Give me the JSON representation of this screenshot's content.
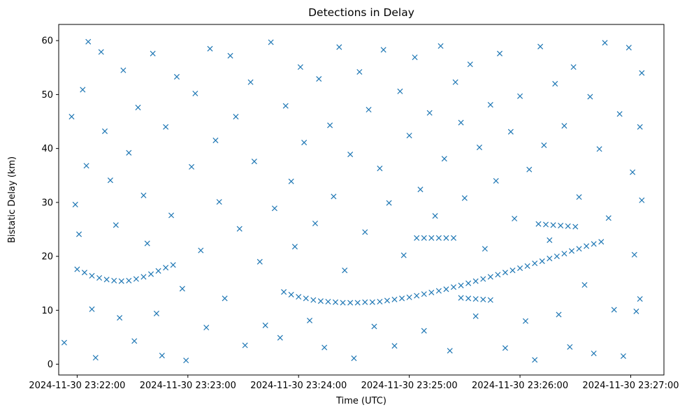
{
  "chart_data": {
    "type": "scatter",
    "title": "Detections in Delay",
    "xlabel": "Time (UTC)",
    "ylabel": "Bistatic Delay (km)",
    "x_unit": "time",
    "x_tick_labels": [
      "2024-11-30 23:22:00",
      "2024-11-30 23:23:00",
      "2024-11-30 23:24:00",
      "2024-11-30 23:25:00",
      "2024-11-30 23:26:00",
      "2024-11-30 23:27:00"
    ],
    "x_ticks": [
      "23:22:00",
      "23:23:00",
      "23:24:00",
      "23:25:00",
      "23:26:00",
      "23:27:00"
    ],
    "xlim": [
      "23:21:50",
      "23:27:18"
    ],
    "y_ticks": [
      0,
      10,
      20,
      30,
      40,
      50,
      60
    ],
    "ylim": [
      -2,
      63
    ],
    "marker": "x",
    "color": "#1f77b4",
    "grid": false,
    "series": [
      {
        "values": [
          [
            "23:22:00",
            17.6
          ],
          [
            "23:22:04",
            17.0
          ],
          [
            "23:22:08",
            16.4
          ],
          [
            "23:22:12",
            16.0
          ],
          [
            "23:22:16",
            15.7
          ],
          [
            "23:22:20",
            15.5
          ],
          [
            "23:22:24",
            15.4
          ],
          [
            "23:22:28",
            15.5
          ],
          [
            "23:22:32",
            15.8
          ],
          [
            "23:22:36",
            16.2
          ],
          [
            "23:22:40",
            16.7
          ],
          [
            "23:22:44",
            17.3
          ],
          [
            "23:22:48",
            17.9
          ],
          [
            "23:22:52",
            18.4
          ],
          [
            "23:23:52",
            13.4
          ],
          [
            "23:23:56",
            12.9
          ],
          [
            "23:24:00",
            12.5
          ],
          [
            "23:24:04",
            12.2
          ],
          [
            "23:24:08",
            11.9
          ],
          [
            "23:24:12",
            11.7
          ],
          [
            "23:24:16",
            11.6
          ],
          [
            "23:24:20",
            11.5
          ],
          [
            "23:24:24",
            11.4
          ],
          [
            "23:24:28",
            11.4
          ],
          [
            "23:24:32",
            11.4
          ],
          [
            "23:24:36",
            11.5
          ],
          [
            "23:24:40",
            11.5
          ],
          [
            "23:24:44",
            11.6
          ],
          [
            "23:24:48",
            11.8
          ],
          [
            "23:24:52",
            12.0
          ],
          [
            "23:24:56",
            12.2
          ],
          [
            "23:25:00",
            12.4
          ],
          [
            "23:25:04",
            12.7
          ],
          [
            "23:25:08",
            13.0
          ],
          [
            "23:25:12",
            13.3
          ],
          [
            "23:25:16",
            13.6
          ],
          [
            "23:25:20",
            13.9
          ],
          [
            "23:25:24",
            14.3
          ],
          [
            "23:25:28",
            14.6
          ],
          [
            "23:25:32",
            15.0
          ],
          [
            "23:25:36",
            15.4
          ],
          [
            "23:25:40",
            15.8
          ],
          [
            "23:25:44",
            16.2
          ],
          [
            "23:25:48",
            16.6
          ],
          [
            "23:25:52",
            17.0
          ],
          [
            "23:25:56",
            17.4
          ],
          [
            "23:26:00",
            17.8
          ],
          [
            "23:26:04",
            18.2
          ],
          [
            "23:26:08",
            18.7
          ],
          [
            "23:26:12",
            19.1
          ],
          [
            "23:26:16",
            19.6
          ],
          [
            "23:26:20",
            20.0
          ],
          [
            "23:26:24",
            20.5
          ],
          [
            "23:26:28",
            21.0
          ],
          [
            "23:26:32",
            21.4
          ],
          [
            "23:26:36",
            21.9
          ],
          [
            "23:26:40",
            22.3
          ],
          [
            "23:26:44",
            22.7
          ],
          [
            "23:25:04",
            23.4
          ],
          [
            "23:25:08",
            23.4
          ],
          [
            "23:25:12",
            23.4
          ],
          [
            "23:25:16",
            23.4
          ],
          [
            "23:25:20",
            23.4
          ],
          [
            "23:25:24",
            23.4
          ],
          [
            "23:25:28",
            12.3
          ],
          [
            "23:25:32",
            12.2
          ],
          [
            "23:25:36",
            12.1
          ],
          [
            "23:25:40",
            12.0
          ],
          [
            "23:25:44",
            11.9
          ],
          [
            "23:26:10",
            26.0
          ],
          [
            "23:26:14",
            25.9
          ],
          [
            "23:26:18",
            25.8
          ],
          [
            "23:26:22",
            25.7
          ],
          [
            "23:26:26",
            25.6
          ],
          [
            "23:26:30",
            25.5
          ],
          [
            "23:21:53",
            4.0
          ],
          [
            "23:21:57",
            45.9
          ],
          [
            "23:21:59",
            29.6
          ],
          [
            "23:22:01",
            24.1
          ],
          [
            "23:22:03",
            50.9
          ],
          [
            "23:22:05",
            36.8
          ],
          [
            "23:22:06",
            59.8
          ],
          [
            "23:22:08",
            10.2
          ],
          [
            "23:22:10",
            1.2
          ],
          [
            "23:22:13",
            57.9
          ],
          [
            "23:22:15",
            43.2
          ],
          [
            "23:22:18",
            34.1
          ],
          [
            "23:22:21",
            25.8
          ],
          [
            "23:22:23",
            8.6
          ],
          [
            "23:22:25",
            54.5
          ],
          [
            "23:22:28",
            39.2
          ],
          [
            "23:22:31",
            4.3
          ],
          [
            "23:22:33",
            47.6
          ],
          [
            "23:22:36",
            31.3
          ],
          [
            "23:22:38",
            22.4
          ],
          [
            "23:22:41",
            57.6
          ],
          [
            "23:22:43",
            9.4
          ],
          [
            "23:22:46",
            1.6
          ],
          [
            "23:22:48",
            44.0
          ],
          [
            "23:22:51",
            27.6
          ],
          [
            "23:22:54",
            53.3
          ],
          [
            "23:22:57",
            14.0
          ],
          [
            "23:22:59",
            0.7
          ],
          [
            "23:23:02",
            36.6
          ],
          [
            "23:23:04",
            50.2
          ],
          [
            "23:23:07",
            21.1
          ],
          [
            "23:23:10",
            6.8
          ],
          [
            "23:23:12",
            58.5
          ],
          [
            "23:23:15",
            41.5
          ],
          [
            "23:23:17",
            30.1
          ],
          [
            "23:23:20",
            12.2
          ],
          [
            "23:23:23",
            57.2
          ],
          [
            "23:23:26",
            45.9
          ],
          [
            "23:23:28",
            25.1
          ],
          [
            "23:23:31",
            3.5
          ],
          [
            "23:23:34",
            52.3
          ],
          [
            "23:23:36",
            37.6
          ],
          [
            "23:23:39",
            19.0
          ],
          [
            "23:23:42",
            7.2
          ],
          [
            "23:23:45",
            59.7
          ],
          [
            "23:23:47",
            28.9
          ],
          [
            "23:23:50",
            4.9
          ],
          [
            "23:23:53",
            47.9
          ],
          [
            "23:23:56",
            33.9
          ],
          [
            "23:23:58",
            21.8
          ],
          [
            "23:24:01",
            55.1
          ],
          [
            "23:24:03",
            41.1
          ],
          [
            "23:24:06",
            8.1
          ],
          [
            "23:24:09",
            26.1
          ],
          [
            "23:24:11",
            52.9
          ],
          [
            "23:24:14",
            3.1
          ],
          [
            "23:24:17",
            44.3
          ],
          [
            "23:24:19",
            31.1
          ],
          [
            "23:24:22",
            58.8
          ],
          [
            "23:24:25",
            17.4
          ],
          [
            "23:24:28",
            38.9
          ],
          [
            "23:24:30",
            1.1
          ],
          [
            "23:24:33",
            54.2
          ],
          [
            "23:24:36",
            24.5
          ],
          [
            "23:24:38",
            47.2
          ],
          [
            "23:24:41",
            7.0
          ],
          [
            "23:24:44",
            36.3
          ],
          [
            "23:24:46",
            58.3
          ],
          [
            "23:24:49",
            29.9
          ],
          [
            "23:24:52",
            3.4
          ],
          [
            "23:24:55",
            50.6
          ],
          [
            "23:24:57",
            20.2
          ],
          [
            "23:25:00",
            42.4
          ],
          [
            "23:25:03",
            56.9
          ],
          [
            "23:25:06",
            32.4
          ],
          [
            "23:25:08",
            6.2
          ],
          [
            "23:25:11",
            46.6
          ],
          [
            "23:25:14",
            27.5
          ],
          [
            "23:25:17",
            59.0
          ],
          [
            "23:25:19",
            38.1
          ],
          [
            "23:25:22",
            2.5
          ],
          [
            "23:25:25",
            52.3
          ],
          [
            "23:25:28",
            44.8
          ],
          [
            "23:25:30",
            30.8
          ],
          [
            "23:25:33",
            55.6
          ],
          [
            "23:25:36",
            8.9
          ],
          [
            "23:25:38",
            40.2
          ],
          [
            "23:25:41",
            21.4
          ],
          [
            "23:25:44",
            48.1
          ],
          [
            "23:25:47",
            34.0
          ],
          [
            "23:25:49",
            57.6
          ],
          [
            "23:25:52",
            3.0
          ],
          [
            "23:25:55",
            43.1
          ],
          [
            "23:25:57",
            27.0
          ],
          [
            "23:26:00",
            49.7
          ],
          [
            "23:26:03",
            8.0
          ],
          [
            "23:26:05",
            36.1
          ],
          [
            "23:26:08",
            0.8
          ],
          [
            "23:26:11",
            58.9
          ],
          [
            "23:26:13",
            40.6
          ],
          [
            "23:26:16",
            23.0
          ],
          [
            "23:26:19",
            52.0
          ],
          [
            "23:26:21",
            9.2
          ],
          [
            "23:26:24",
            44.2
          ],
          [
            "23:26:27",
            3.2
          ],
          [
            "23:26:29",
            55.1
          ],
          [
            "23:26:32",
            31.0
          ],
          [
            "23:26:35",
            14.7
          ],
          [
            "23:26:38",
            49.6
          ],
          [
            "23:26:40",
            2.0
          ],
          [
            "23:26:43",
            39.9
          ],
          [
            "23:26:46",
            59.6
          ],
          [
            "23:26:48",
            27.1
          ],
          [
            "23:26:51",
            10.1
          ],
          [
            "23:26:54",
            46.4
          ],
          [
            "23:26:56",
            1.5
          ],
          [
            "23:26:59",
            58.7
          ],
          [
            "23:27:01",
            35.6
          ],
          [
            "23:27:03",
            9.8
          ],
          [
            "23:27:05",
            44.0
          ],
          [
            "23:27:06",
            54.0
          ],
          [
            "23:27:06",
            30.4
          ],
          [
            "23:27:05",
            12.1
          ],
          [
            "23:27:02",
            20.3
          ]
        ]
      }
    ]
  }
}
